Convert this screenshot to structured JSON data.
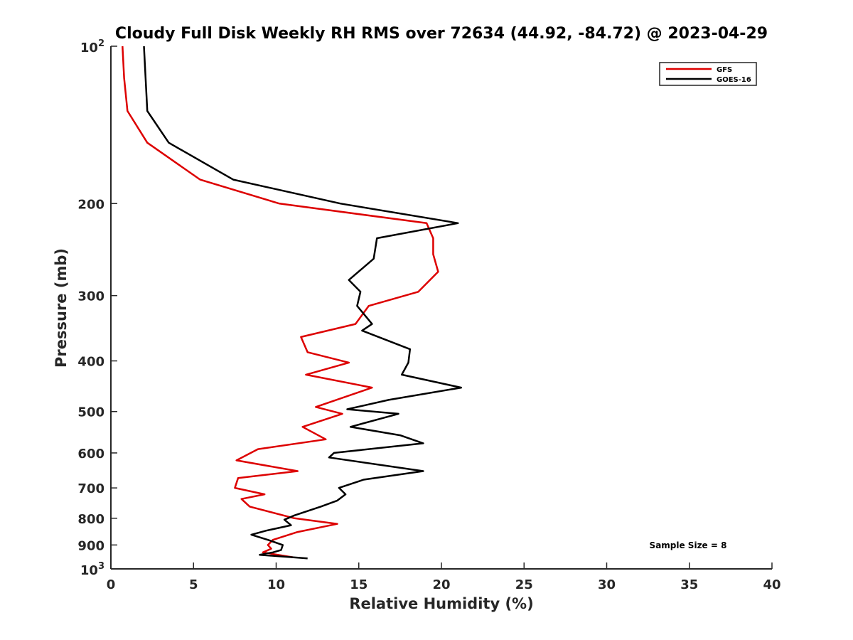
{
  "chart_data": {
    "type": "line",
    "title": "Cloudy Full Disk Weekly RH RMS over 72634 (44.92, -84.72) @ 2023-04-29",
    "xlabel": "Relative Humidity (%)",
    "ylabel": "Pressure (mb)",
    "xlim": [
      0,
      40
    ],
    "ylim": [
      100,
      1000
    ],
    "y_scale": "log",
    "y_reversed": true,
    "x_ticks": [
      "0",
      "5",
      "10",
      "15",
      "20",
      "25",
      "30",
      "35",
      "40"
    ],
    "y_ticks": [
      {
        "value": 100,
        "base": "10",
        "exp": "2"
      },
      {
        "value": 200,
        "label": "200"
      },
      {
        "value": 300,
        "label": "300"
      },
      {
        "value": 400,
        "label": "400"
      },
      {
        "value": 500,
        "label": "500"
      },
      {
        "value": 600,
        "label": "600"
      },
      {
        "value": 700,
        "label": "700"
      },
      {
        "value": 800,
        "label": "800"
      },
      {
        "value": 900,
        "label": "900"
      },
      {
        "value": 1000,
        "base": "10",
        "exp": "3"
      }
    ],
    "grid": false,
    "legend_position": "top-right",
    "series": [
      {
        "name": "GFS",
        "color": "#dd0000",
        "points": [
          [
            0.7,
            100
          ],
          [
            0.8,
            115
          ],
          [
            1.0,
            133
          ],
          [
            2.2,
            153
          ],
          [
            5.4,
            180
          ],
          [
            10.2,
            200
          ],
          [
            19.1,
            218
          ],
          [
            19.5,
            233
          ],
          [
            19.5,
            250
          ],
          [
            19.8,
            270
          ],
          [
            18.6,
            295
          ],
          [
            15.6,
            314
          ],
          [
            14.8,
            340
          ],
          [
            11.5,
            360
          ],
          [
            11.9,
            385
          ],
          [
            14.4,
            403
          ],
          [
            11.8,
            425
          ],
          [
            15.8,
            450
          ],
          [
            12.4,
            490
          ],
          [
            14.0,
            505
          ],
          [
            11.6,
            535
          ],
          [
            13.0,
            565
          ],
          [
            8.9,
            590
          ],
          [
            7.6,
            620
          ],
          [
            11.3,
            650
          ],
          [
            7.7,
            670
          ],
          [
            7.5,
            700
          ],
          [
            9.3,
            720
          ],
          [
            7.9,
            735
          ],
          [
            8.4,
            760
          ],
          [
            11.1,
            800
          ],
          [
            13.7,
            820
          ],
          [
            11.3,
            850
          ],
          [
            9.8,
            880
          ],
          [
            9.5,
            900
          ],
          [
            9.7,
            915
          ],
          [
            9.2,
            930
          ],
          [
            11.0,
            950
          ]
        ]
      },
      {
        "name": "GOES-16",
        "color": "#000000",
        "points": [
          [
            2.0,
            100
          ],
          [
            2.1,
            115
          ],
          [
            2.2,
            133
          ],
          [
            3.5,
            153
          ],
          [
            7.4,
            180
          ],
          [
            13.9,
            200
          ],
          [
            21.0,
            218
          ],
          [
            16.1,
            233
          ],
          [
            15.9,
            255
          ],
          [
            14.4,
            280
          ],
          [
            15.1,
            295
          ],
          [
            14.9,
            314
          ],
          [
            15.8,
            340
          ],
          [
            15.2,
            350
          ],
          [
            18.1,
            380
          ],
          [
            18.0,
            403
          ],
          [
            17.6,
            425
          ],
          [
            21.2,
            450
          ],
          [
            16.8,
            475
          ],
          [
            14.3,
            495
          ],
          [
            17.4,
            505
          ],
          [
            14.5,
            535
          ],
          [
            17.5,
            555
          ],
          [
            18.9,
            575
          ],
          [
            13.5,
            600
          ],
          [
            13.2,
            612
          ],
          [
            18.9,
            650
          ],
          [
            15.3,
            675
          ],
          [
            13.8,
            700
          ],
          [
            14.2,
            720
          ],
          [
            13.7,
            740
          ],
          [
            12.7,
            760
          ],
          [
            11.1,
            790
          ],
          [
            10.5,
            805
          ],
          [
            10.9,
            825
          ],
          [
            9.4,
            845
          ],
          [
            8.5,
            860
          ],
          [
            9.5,
            880
          ],
          [
            10.4,
            900
          ],
          [
            10.3,
            920
          ],
          [
            9.8,
            930
          ],
          [
            9.0,
            940
          ],
          [
            11.9,
            955
          ]
        ]
      }
    ],
    "annotations": [
      "Sample Size = 8"
    ]
  }
}
